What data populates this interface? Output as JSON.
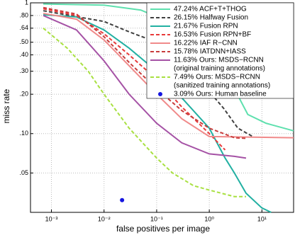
{
  "chart_data": {
    "type": "line",
    "x_label": "false positives per image",
    "y_label": "miss rate",
    "xscale": "log",
    "yscale": "log",
    "grid": true,
    "legend": "top-right",
    "xlim": [
      0.0004,
      40
    ],
    "ylim": [
      0.025,
      1
    ],
    "xticks": [
      {
        "value": 0.001,
        "label": "10⁻³"
      },
      {
        "value": 0.01,
        "label": "10⁻²"
      },
      {
        "value": 0.1,
        "label": "10⁻¹"
      },
      {
        "value": 1,
        "label": "10⁰"
      },
      {
        "value": 10,
        "label": "10¹"
      }
    ],
    "yticks": [
      {
        "value": 0.05,
        "label": ".05"
      },
      {
        "value": 0.1,
        "label": ".10"
      },
      {
        "value": 0.2,
        "label": ".20"
      },
      {
        "value": 0.3,
        "label": ".30"
      },
      {
        "value": 0.4,
        "label": ".40"
      },
      {
        "value": 0.5,
        "label": ".50"
      },
      {
        "value": 0.64,
        "label": ".64"
      },
      {
        "value": 0.8,
        "label": ".80"
      },
      1
    ],
    "series": [
      {
        "name": "47.24% ACF+T+THOG",
        "color": "#5ee0ae",
        "style": "solid",
        "x": [
          0.0007,
          0.01,
          0.05,
          0.33,
          1.2,
          3.0,
          5.4,
          12,
          40
        ],
        "values": [
          0.98,
          0.96,
          0.88,
          0.64,
          0.38,
          0.22,
          0.14,
          0.12,
          0.105
        ]
      },
      {
        "name": "26.15% Halfway Fusion",
        "color": "#404040",
        "style": "dashed",
        "x": [
          0.0007,
          0.01,
          0.03,
          0.1,
          0.33,
          1,
          1.9,
          3.5,
          7
        ],
        "values": [
          0.87,
          0.72,
          0.6,
          0.5,
          0.32,
          0.21,
          0.155,
          0.11,
          0.094
        ]
      },
      {
        "name": "21.67% Fusion RPN",
        "color": "#22b0a2",
        "style": "solid",
        "x": [
          0.0007,
          0.003,
          0.01,
          0.03,
          0.1,
          0.33,
          1,
          2,
          3,
          5,
          10,
          15
        ],
        "values": [
          0.81,
          0.78,
          0.62,
          0.45,
          0.3,
          0.18,
          0.11,
          0.065,
          0.05,
          0.035,
          0.027,
          0.025
        ]
      },
      {
        "name": "16.53% Fusion RPN+BF",
        "color": "#e83a3a",
        "style": "dashed",
        "x": [
          0.0007,
          0.003,
          0.01,
          0.03,
          0.1,
          0.3,
          1,
          2
        ],
        "values": [
          0.9,
          0.8,
          0.58,
          0.4,
          0.26,
          0.16,
          0.1,
          0.075
        ]
      },
      {
        "name": "16.22% IAF R−CNN",
        "color": "#f08a8a",
        "style": "solid",
        "x": [
          0.0007,
          0.003,
          0.01,
          0.03,
          0.1,
          0.3,
          1,
          40
        ],
        "values": [
          0.83,
          0.75,
          0.52,
          0.33,
          0.2,
          0.13,
          0.095,
          0.093
        ]
      },
      {
        "name": "15.78% IATDNN+IASS",
        "color": "#c83c3c",
        "style": "dashed",
        "x": [
          0.0007,
          0.003,
          0.01,
          0.03,
          0.1,
          0.3,
          1,
          3,
          5
        ],
        "values": [
          0.92,
          0.82,
          0.55,
          0.35,
          0.22,
          0.15,
          0.11,
          0.093,
          0.092
        ]
      },
      {
        "name": "11.63% Ours: MSDS−RCNN",
        "name_line2": "(original training annotations)",
        "color": "#a552a5",
        "style": "solid",
        "x": [
          0.0007,
          0.003,
          0.01,
          0.03,
          0.1,
          0.3,
          1,
          3,
          5
        ],
        "values": [
          0.8,
          0.62,
          0.36,
          0.2,
          0.12,
          0.085,
          0.07,
          0.067,
          0.065
        ]
      },
      {
        "name": "7.49% Ours: MSDS−RCNN",
        "name_line2": "(sanitized training annotations)",
        "color": "#a8e040",
        "style": "dashed",
        "x": [
          0.0007,
          0.002,
          0.005,
          0.01,
          0.03,
          0.1,
          0.2,
          0.5,
          1,
          3,
          5
        ],
        "values": [
          0.64,
          0.45,
          0.3,
          0.2,
          0.11,
          0.065,
          0.05,
          0.04,
          0.037,
          0.033,
          0.033
        ]
      },
      {
        "name": "3.09% Ours: Human baseline",
        "color": "#1515e0",
        "style": "marker",
        "x": [
          0.022
        ],
        "values": [
          0.031
        ]
      }
    ]
  }
}
